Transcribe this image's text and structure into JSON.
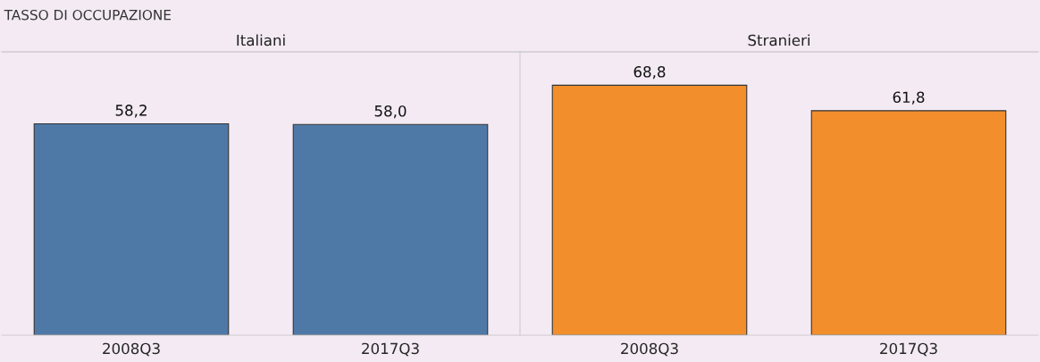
{
  "chart_data": [
    {
      "type": "bar",
      "title": "TASSO DI OCCUPAZIONE",
      "subtitle": "Italiani",
      "categories": [
        "2008Q3",
        "2017Q3"
      ],
      "values": [
        58.2,
        58.0
      ],
      "value_labels": [
        "58,2",
        "58,0"
      ],
      "color": "#4e79a7",
      "ylim": [
        0,
        78
      ],
      "tick_labels": "x"
    },
    {
      "type": "bar",
      "subtitle": "Stranieri",
      "categories": [
        "2008Q3",
        "2017Q3"
      ],
      "values": [
        68.8,
        61.8
      ],
      "value_labels": [
        "68,8",
        "61,8"
      ],
      "color": "#f28e2b",
      "ylim": [
        0,
        78
      ],
      "tick_labels": "x"
    }
  ]
}
